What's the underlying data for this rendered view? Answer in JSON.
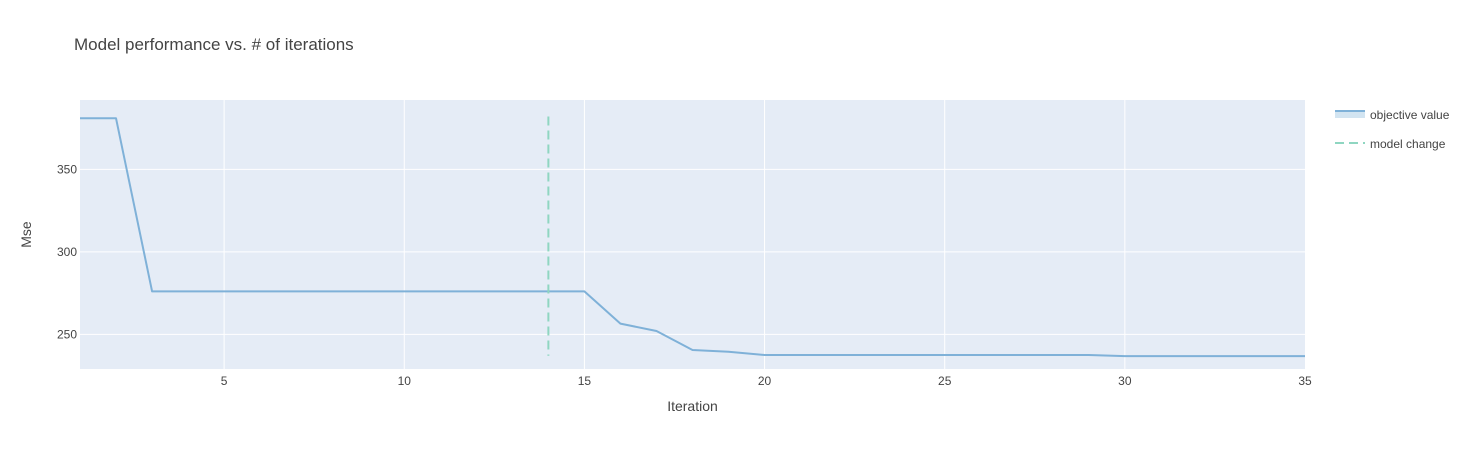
{
  "chart_data": {
    "type": "line",
    "title": "Model performance vs. # of iterations",
    "xlabel": "Iteration",
    "ylabel": "Mse",
    "xlim": [
      1,
      35
    ],
    "ylim": [
      229,
      392
    ],
    "x_ticks": [
      5,
      10,
      15,
      20,
      25,
      30,
      35
    ],
    "y_ticks": [
      250,
      300,
      350
    ],
    "grid": true,
    "legend_position": "top-right",
    "series": [
      {
        "name": "objective value",
        "color": "#7fb1d8",
        "x": [
          1,
          2,
          3,
          4,
          5,
          6,
          7,
          8,
          9,
          10,
          11,
          12,
          13,
          14,
          15,
          16,
          17,
          18,
          19,
          20,
          21,
          22,
          23,
          24,
          25,
          26,
          27,
          28,
          29,
          30,
          31,
          32,
          33,
          34,
          35
        ],
        "y": [
          381,
          381,
          276,
          276,
          276,
          276,
          276,
          276,
          276,
          276,
          276,
          276,
          276,
          276,
          276,
          256.5,
          252,
          240.5,
          239.5,
          237.5,
          237.5,
          237.5,
          237.5,
          237.5,
          237.5,
          237.5,
          237.5,
          237.5,
          237.5,
          236.8,
          236.8,
          236.8,
          236.8,
          236.8,
          236.8
        ]
      }
    ],
    "markers": [
      {
        "name": "model change",
        "type": "vertical-dashed-line",
        "color": "#8fd6c1",
        "x": 14,
        "y_range": [
          237,
          382
        ]
      }
    ],
    "colors": {
      "plot_background": "#e5ecf6",
      "grid": "#ffffff",
      "text": "#444444"
    }
  }
}
